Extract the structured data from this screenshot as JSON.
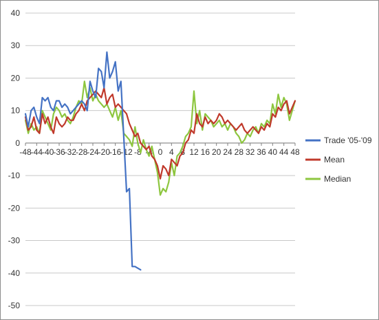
{
  "chart_data": {
    "type": "line",
    "title": "",
    "xlabel": "",
    "ylabel": "",
    "ylim": [
      -50,
      40
    ],
    "xlim": [
      -48,
      48
    ],
    "y_ticks": [
      40,
      30,
      20,
      10,
      0,
      -10,
      -20,
      -30,
      -40,
      -50
    ],
    "y_tick_labels": [
      "40",
      "30",
      "20",
      "10",
      "0",
      "-10",
      "-20",
      "-30",
      "-40",
      "-50"
    ],
    "x_ticks": [
      -48,
      -44,
      -40,
      -36,
      -32,
      -28,
      -24,
      -20,
      -16,
      -12,
      -8,
      -4,
      0,
      4,
      8,
      12,
      16,
      20,
      24,
      28,
      32,
      36,
      40,
      44,
      48
    ],
    "x_tick_labels": [
      "-48",
      "-44",
      "-40",
      "-36",
      "-32",
      "-28",
      "-24",
      "-20",
      "-16",
      "-12",
      "-8",
      "-4",
      "0",
      "4",
      "8",
      "12",
      "16",
      "20",
      "24",
      "28",
      "32",
      "36",
      "40",
      "44",
      "48"
    ],
    "grid": true,
    "legend_position": "right",
    "series": [
      {
        "name": "Trade '05-'09",
        "color": "#4472c4",
        "x": [
          -48,
          -47,
          -46,
          -45,
          -44,
          -43,
          -42,
          -41,
          -40,
          -39,
          -38,
          -37,
          -36,
          -35,
          -34,
          -33,
          -32,
          -31,
          -30,
          -29,
          -28,
          -27,
          -26,
          -25,
          -24,
          -23,
          -22,
          -21,
          -20,
          -19,
          -18,
          -17,
          -16,
          -15,
          -14,
          -13,
          -12,
          -11,
          -10,
          -9,
          -8,
          -7
        ],
        "values": [
          9,
          5,
          10,
          11,
          8,
          6,
          14,
          13,
          14,
          11,
          10,
          13,
          13,
          11,
          12,
          11,
          9,
          10,
          11,
          12,
          13,
          12,
          10,
          19,
          16,
          14,
          23,
          22,
          17,
          28,
          20,
          22,
          25,
          16,
          19,
          2,
          -15,
          -14,
          -38,
          -38,
          -38.5,
          -39
        ]
      },
      {
        "name": "Mean",
        "color": "#c0392b",
        "x": [
          -48,
          -47,
          -46,
          -45,
          -44,
          -43,
          -42,
          -41,
          -40,
          -39,
          -38,
          -37,
          -36,
          -35,
          -34,
          -33,
          -32,
          -31,
          -30,
          -29,
          -28,
          -27,
          -26,
          -25,
          -24,
          -23,
          -22,
          -21,
          -20,
          -19,
          -18,
          -17,
          -16,
          -15,
          -14,
          -13,
          -12,
          -11,
          -10,
          -9,
          -8,
          -7,
          -6,
          -5,
          -4,
          -3,
          -2,
          -1,
          0,
          1,
          2,
          3,
          4,
          5,
          6,
          7,
          8,
          9,
          10,
          11,
          12,
          13,
          14,
          15,
          16,
          17,
          18,
          19,
          20,
          21,
          22,
          23,
          24,
          25,
          26,
          27,
          28,
          29,
          30,
          31,
          32,
          33,
          34,
          35,
          36,
          37,
          38,
          39,
          40,
          41,
          42,
          43,
          44,
          45,
          46,
          47,
          48
        ],
        "values": [
          8,
          4,
          5,
          8,
          4,
          3,
          9,
          6,
          8,
          5,
          3,
          8,
          6,
          5,
          6,
          8,
          7,
          7,
          9,
          10,
          12,
          10,
          13,
          14,
          15,
          16,
          15,
          14,
          17,
          12,
          14,
          15,
          11,
          12,
          11,
          10,
          9,
          6,
          4,
          2,
          3,
          0,
          -1,
          -2,
          -1,
          -4,
          -5,
          -7,
          -11,
          -7,
          -8,
          -10,
          -5,
          -6,
          -7,
          -4,
          -3,
          0,
          1,
          4,
          3,
          9,
          6,
          5,
          8,
          6,
          7,
          6,
          7,
          9,
          8,
          6,
          7,
          6,
          5,
          4,
          5,
          6,
          4,
          3,
          4,
          5,
          4,
          3,
          5,
          4,
          6,
          5,
          9,
          8,
          11,
          10,
          12,
          13,
          9,
          11,
          13
        ],
        "x_start": -48
      },
      {
        "name": "Median",
        "color": "#8dc63f",
        "x": [
          -48,
          -47,
          -46,
          -45,
          -44,
          -43,
          -42,
          -41,
          -40,
          -39,
          -38,
          -37,
          -36,
          -35,
          -34,
          -33,
          -32,
          -31,
          -30,
          -29,
          -28,
          -27,
          -26,
          -25,
          -24,
          -23,
          -22,
          -21,
          -20,
          -19,
          -18,
          -17,
          -16,
          -15,
          -14,
          -13,
          -12,
          -11,
          -10,
          -9,
          -8,
          -7,
          -6,
          -5,
          -4,
          -3,
          -2,
          -1,
          0,
          1,
          2,
          3,
          4,
          5,
          6,
          7,
          8,
          9,
          10,
          11,
          12,
          13,
          14,
          15,
          16,
          17,
          18,
          19,
          20,
          21,
          22,
          23,
          24,
          25,
          26,
          27,
          28,
          29,
          30,
          31,
          32,
          33,
          34,
          35,
          36,
          37,
          38,
          39,
          40,
          41,
          42,
          43,
          44,
          45,
          46,
          47,
          48
        ],
        "values": [
          7,
          3,
          6,
          4,
          5,
          3,
          10,
          8,
          6,
          4,
          9,
          11,
          10,
          8,
          9,
          7,
          6,
          8,
          11,
          13,
          12,
          19,
          14,
          17,
          13,
          15,
          13,
          12,
          11,
          12,
          10,
          8,
          11,
          7,
          10,
          3,
          2,
          1,
          -1,
          5,
          0,
          -3,
          1,
          -2,
          -4,
          -1,
          -5,
          -9,
          -16,
          -14,
          -15,
          -12,
          -6,
          -10,
          -4,
          -3,
          -1,
          2,
          3,
          5,
          16,
          6,
          10,
          4,
          9,
          8,
          7,
          5,
          6,
          7,
          5,
          6,
          4,
          6,
          5,
          3,
          2,
          0,
          1,
          3,
          2,
          4,
          5,
          3,
          6,
          5,
          7,
          6,
          12,
          9,
          15,
          11,
          14,
          12,
          7,
          10,
          13
        ]
      }
    ]
  }
}
